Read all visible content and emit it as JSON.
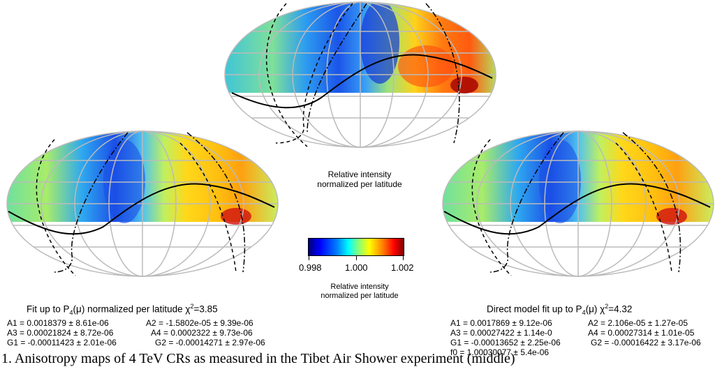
{
  "maps": {
    "top": {
      "caption_line1": "Relative intensity",
      "caption_line2": "normalized per latitude"
    },
    "left": {
      "title": "Fit up to P",
      "title_sub": "4",
      "title_mu": "(μ) normalized per latitude χ",
      "title_sup": "2",
      "title_end": "=3.85"
    },
    "right": {
      "title": "Direct model fit up to P",
      "title_sub": "4",
      "title_mu": "(μ)  χ",
      "title_sup": "2",
      "title_end": "=4.32"
    }
  },
  "colorbar": {
    "tick_labels": [
      "0.998",
      "1.000",
      "1.002"
    ],
    "label_line1": "Relative intensity",
    "label_line2": "normalized per latitude"
  },
  "left_params": {
    "a1": "A1 = 0.0018379 ± 8.61e-06",
    "a2": "A2 = -1.5802e-05 ± 9.39e-06",
    "a3": "A3 = 0.00021824 ± 8.72e-06",
    "a4": "A4 = 0.0002322 ± 9.73e-06",
    "g1": "G1 = -0.00011423 ± 2.01e-06",
    "g2": "G2 = -0.00014271 ± 2.97e-06"
  },
  "right_params": {
    "a1": "A1 = 0.0017869 ± 9.12e-06",
    "a2": "A2 = 2.106e-05 ± 1.27e-05",
    "a3": "A3 = 0.00027422 ± 1.14e-0",
    "a4": "A4 = 0.00027314 ± 1.01e-05",
    "g1": "G1 = -0.00013652 ± 2.25e-06",
    "g2": "G2 = -0.00016422 ± 3.17e-06",
    "f0": "f0 = 1.00030077 ± 5.4e-06"
  },
  "caption_fragment": "1.  Anisotropy maps of 4 TeV CRs as measured in the Tibet Air Shower experiment (middle)"
}
